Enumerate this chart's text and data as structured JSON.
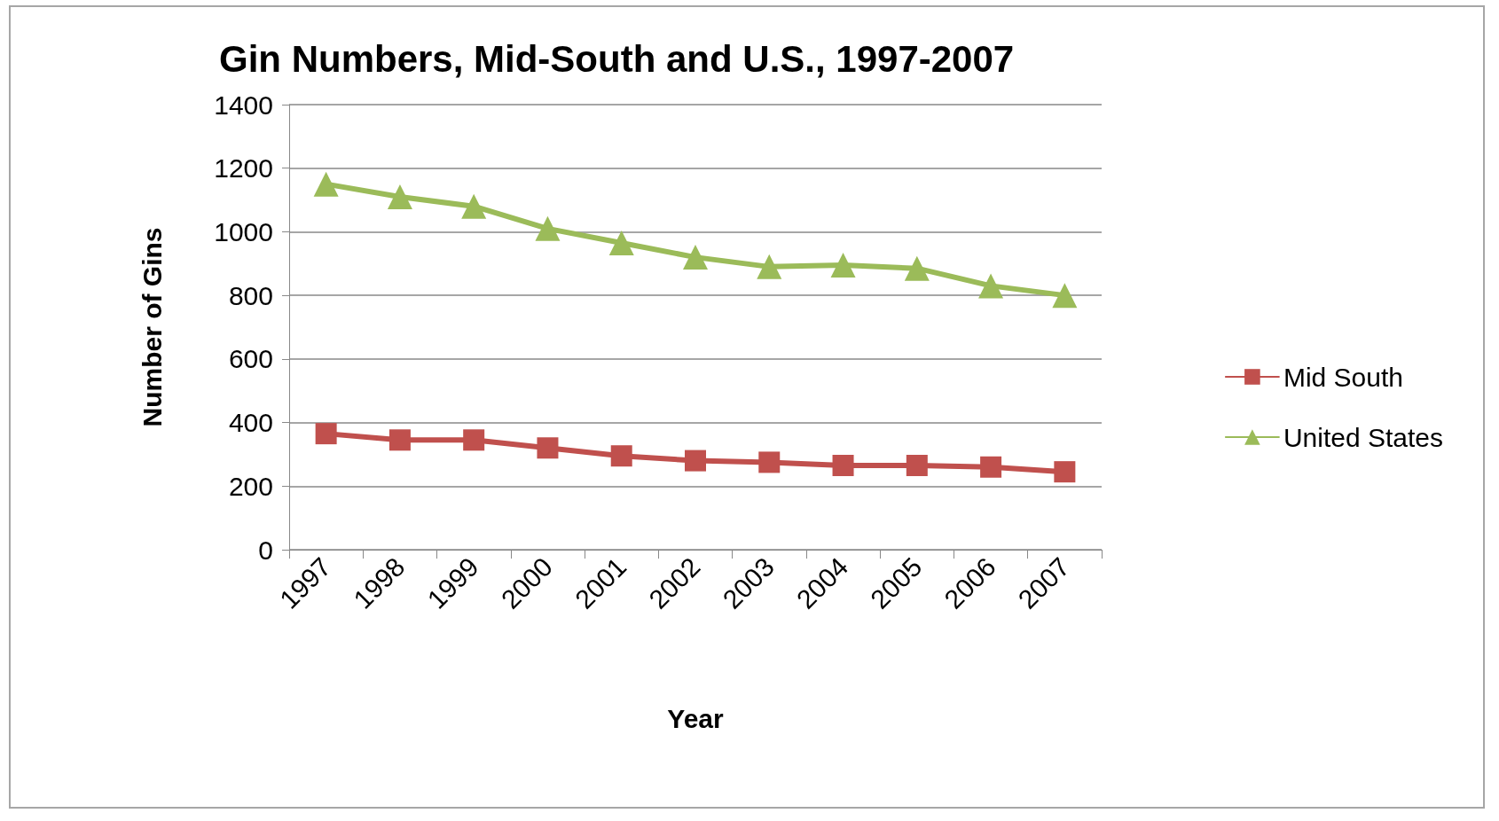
{
  "chart_data": {
    "type": "line",
    "title": "Gin Numbers, Mid-South and U.S., 1997-2007",
    "xlabel": "Year",
    "ylabel": "Number of Gins",
    "categories": [
      "1997",
      "1998",
      "1999",
      "2000",
      "2001",
      "2002",
      "2003",
      "2004",
      "2005",
      "2006",
      "2007"
    ],
    "series": [
      {
        "name": "Mid South",
        "color": "#c0504d",
        "marker": "square",
        "values": [
          365,
          345,
          345,
          320,
          295,
          280,
          275,
          265,
          265,
          260,
          245
        ]
      },
      {
        "name": "United States",
        "color": "#9bbb59",
        "marker": "triangle",
        "values": [
          1150,
          1110,
          1080,
          1010,
          965,
          920,
          890,
          895,
          885,
          830,
          800
        ]
      }
    ],
    "ylim": [
      0,
      1400
    ],
    "yticks": [
      0,
      200,
      400,
      600,
      800,
      1000,
      1200,
      1400
    ],
    "grid": "y",
    "legend": "right",
    "line_style": "solid"
  }
}
